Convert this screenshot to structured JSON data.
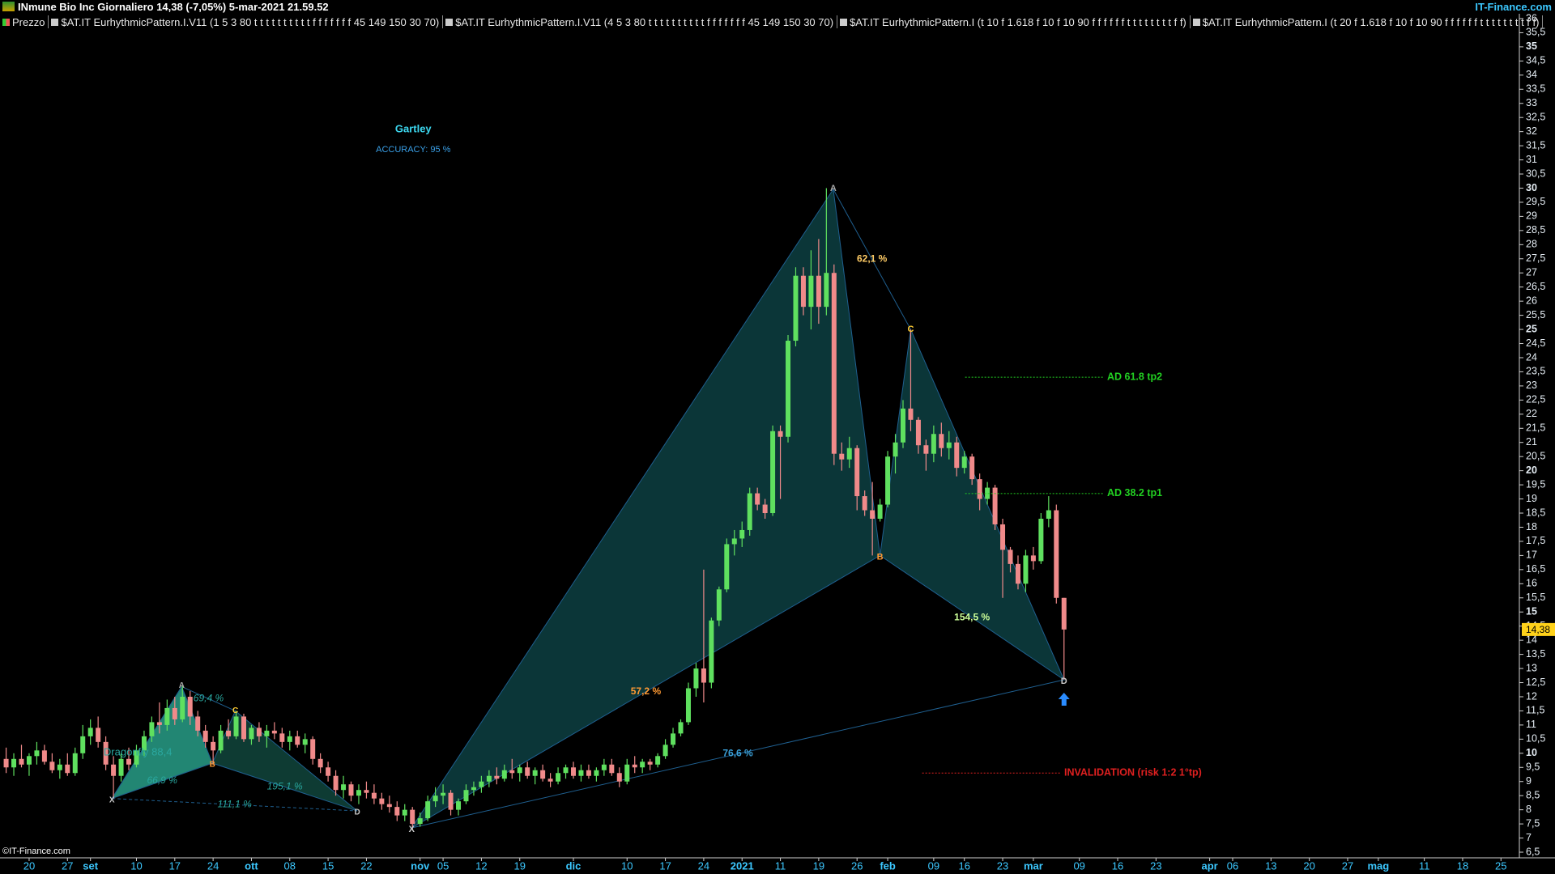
{
  "header": {
    "title": "INmune Bio Inc Giornaliero 14,38 (-7,05%) 5-mar-2021 21.59.52",
    "brand": "IT-Finance.com",
    "indicators": [
      "Prezzo",
      "$AT.IT EurhythmicPattern.I.V11 (1 5 3 80 t t t t t t t t t t f f f f f f f 45 149 150 30 70)",
      "$AT.IT EurhythmicPattern.I.V11 (4 5 3 80 t t t t t t t t t t f f f f f f f 45 149 150 30 70)",
      "$AT.IT EurhythmicPattern.I (t 10 f 1.618 f 10 f 10 90 f f f f f f t t t t t t t t f f)",
      "$AT.IT EurhythmicPattern.I (t 20 f 1.618 f 10 f 10 90 f f f f f f t t t t t t t t f f)"
    ],
    "footer": "©IT-Finance.com"
  },
  "chart_data": {
    "type": "candlestick",
    "x": [
      0,
      1,
      2,
      3,
      4,
      5,
      6,
      7,
      8,
      9,
      10,
      11,
      12,
      13,
      14,
      15,
      16,
      17,
      18,
      19,
      20,
      21,
      22,
      23,
      24,
      25,
      26,
      27,
      28,
      29,
      30,
      31,
      32,
      33,
      34,
      35,
      36,
      37,
      38,
      39,
      40,
      41,
      42,
      43,
      44,
      45,
      46,
      47,
      48,
      49,
      50,
      51,
      52,
      53,
      54,
      55,
      56,
      57,
      58,
      59,
      60,
      61,
      62,
      63,
      64,
      65,
      66,
      67,
      68,
      69,
      70,
      71,
      72,
      73,
      74,
      75,
      76,
      77,
      78,
      79,
      80,
      81,
      82,
      83,
      84,
      85,
      86,
      87,
      88,
      89,
      90,
      91,
      92,
      93,
      94,
      95,
      96,
      97,
      98,
      99,
      100,
      101,
      102,
      103,
      104,
      105,
      106,
      107,
      108,
      109,
      110,
      111,
      112,
      113,
      114,
      115,
      116,
      117,
      118,
      119,
      120,
      121,
      122,
      123,
      124,
      125,
      126,
      127,
      128,
      129,
      130,
      131,
      132,
      133,
      134,
      135,
      136,
      137,
      138
    ],
    "open": [
      9.8,
      9.5,
      9.8,
      9.6,
      9.9,
      10.1,
      9.7,
      9.4,
      9.6,
      9.3,
      10.0,
      10.6,
      10.9,
      10.4,
      9.6,
      9.2,
      9.8,
      9.6,
      10.1,
      10.6,
      11.1,
      11.0,
      11.6,
      11.2,
      12.0,
      11.3,
      10.8,
      10.4,
      10.1,
      10.8,
      10.6,
      11.3,
      10.5,
      10.9,
      10.6,
      10.8,
      10.7,
      10.4,
      10.6,
      10.3,
      10.5,
      9.8,
      9.5,
      9.2,
      8.7,
      8.9,
      8.5,
      8.7,
      8.6,
      8.4,
      8.2,
      8.1,
      7.8,
      8.0,
      7.5,
      7.7,
      8.3,
      8.5,
      8.6,
      8.0,
      8.3,
      8.7,
      8.8,
      9.0,
      9.2,
      9.1,
      9.4,
      9.3,
      9.5,
      9.2,
      9.4,
      9.1,
      9.0,
      9.3,
      9.5,
      9.2,
      9.4,
      9.2,
      9.4,
      9.6,
      9.3,
      9.0,
      9.6,
      9.5,
      9.7,
      9.6,
      9.9,
      10.3,
      10.7,
      11.1,
      12.3,
      13.0,
      12.5,
      14.7,
      15.8,
      17.4,
      17.6,
      17.9,
      19.2,
      18.8,
      18.5,
      21.4,
      21.2,
      24.6,
      26.9,
      25.8,
      26.9,
      25.8,
      27.0,
      20.6,
      20.4,
      20.8,
      19.1,
      18.6,
      18.3,
      18.8,
      20.5,
      21.0,
      22.2,
      21.8,
      20.9,
      20.6,
      21.3,
      20.8,
      21.0,
      20.1,
      20.5,
      19.7,
      19.0,
      19.4,
      18.1,
      17.2,
      16.7,
      16.0,
      17.0,
      16.8,
      18.3,
      18.6,
      15.5
    ],
    "high": [
      10.2,
      10.0,
      10.3,
      10.0,
      10.4,
      10.3,
      10.0,
      9.8,
      10.0,
      10.2,
      11.0,
      11.2,
      11.3,
      10.6,
      9.9,
      10.0,
      10.2,
      10.3,
      10.8,
      11.3,
      11.8,
      11.9,
      12.0,
      12.4,
      12.2,
      11.5,
      11.0,
      10.6,
      11.0,
      11.2,
      11.5,
      11.4,
      11.0,
      11.1,
      11.0,
      11.1,
      10.9,
      10.8,
      10.8,
      10.7,
      10.6,
      10.0,
      9.7,
      9.4,
      9.2,
      9.0,
      8.9,
      9.0,
      8.9,
      8.6,
      8.5,
      8.3,
      8.2,
      8.1,
      7.9,
      8.5,
      8.8,
      8.9,
      8.7,
      8.4,
      8.9,
      9.0,
      9.2,
      9.4,
      9.5,
      9.6,
      9.8,
      9.6,
      9.7,
      9.5,
      9.6,
      9.3,
      9.5,
      9.6,
      9.7,
      9.6,
      9.6,
      9.5,
      9.8,
      9.8,
      9.5,
      9.8,
      9.9,
      9.8,
      9.8,
      10.0,
      10.5,
      10.9,
      11.2,
      12.5,
      13.2,
      16.5,
      14.8,
      15.9,
      17.6,
      17.9,
      18.2,
      19.4,
      19.4,
      19.0,
      21.6,
      21.6,
      24.8,
      27.2,
      27.2,
      27.8,
      28.2,
      30.0,
      27.3,
      21.0,
      21.2,
      20.9,
      19.3,
      19.6,
      19.0,
      20.7,
      21.3,
      22.5,
      25.0,
      21.9,
      21.1,
      21.6,
      21.7,
      21.4,
      21.2,
      20.7,
      20.6,
      19.9,
      19.6,
      19.5,
      18.3,
      17.3,
      17.0,
      17.2,
      17.3,
      18.5,
      19.1,
      18.8,
      15.5
    ],
    "low": [
      9.3,
      9.2,
      9.5,
      9.2,
      9.6,
      9.6,
      9.3,
      9.1,
      9.2,
      9.2,
      9.8,
      10.3,
      10.2,
      9.4,
      8.4,
      9.0,
      9.4,
      9.5,
      9.9,
      10.4,
      10.7,
      10.8,
      11.0,
      11.1,
      11.0,
      10.6,
      10.2,
      9.6,
      10.0,
      10.5,
      10.5,
      10.4,
      10.3,
      10.4,
      10.2,
      10.5,
      10.2,
      10.1,
      10.2,
      10.0,
      9.6,
      9.3,
      9.0,
      8.5,
      8.4,
      8.3,
      8.2,
      8.4,
      8.2,
      8.0,
      7.9,
      7.6,
      7.6,
      7.3,
      7.4,
      7.6,
      8.1,
      8.2,
      7.8,
      7.8,
      8.2,
      8.5,
      8.6,
      8.8,
      8.9,
      9.0,
      9.1,
      9.0,
      9.1,
      8.9,
      9.0,
      8.8,
      8.9,
      9.1,
      9.1,
      9.0,
      9.1,
      9.0,
      9.2,
      9.2,
      8.8,
      8.9,
      9.3,
      9.3,
      9.4,
      9.5,
      9.8,
      10.2,
      10.6,
      11.0,
      12.0,
      11.8,
      12.3,
      14.5,
      15.7,
      17.0,
      17.3,
      17.7,
      18.6,
      18.3,
      18.4,
      19.0,
      21.0,
      24.4,
      25.5,
      25.0,
      25.2,
      25.5,
      20.2,
      20.0,
      20.1,
      18.6,
      18.4,
      17.0,
      18.2,
      18.7,
      19.9,
      20.8,
      21.4,
      20.6,
      20.0,
      20.3,
      20.5,
      20.4,
      19.8,
      19.9,
      19.5,
      18.6,
      18.8,
      17.9,
      15.5,
      16.4,
      15.8,
      15.7,
      16.5,
      16.7,
      18.0,
      15.3,
      12.6
    ],
    "close": [
      9.5,
      9.8,
      9.6,
      9.9,
      10.1,
      9.7,
      9.4,
      9.6,
      9.3,
      10.0,
      10.6,
      10.9,
      10.4,
      9.6,
      9.2,
      9.8,
      9.6,
      10.1,
      10.6,
      11.1,
      11.0,
      11.6,
      11.2,
      12.0,
      11.3,
      10.8,
      10.4,
      10.1,
      10.8,
      10.6,
      11.3,
      10.5,
      10.9,
      10.6,
      10.8,
      10.7,
      10.4,
      10.6,
      10.3,
      10.5,
      9.8,
      9.5,
      9.2,
      8.7,
      8.9,
      8.5,
      8.7,
      8.6,
      8.4,
      8.2,
      8.1,
      7.8,
      8.0,
      7.5,
      7.7,
      8.3,
      8.5,
      8.6,
      8.0,
      8.3,
      8.7,
      8.8,
      9.0,
      9.2,
      9.1,
      9.4,
      9.3,
      9.5,
      9.2,
      9.4,
      9.1,
      9.0,
      9.3,
      9.5,
      9.2,
      9.4,
      9.2,
      9.4,
      9.6,
      9.3,
      9.0,
      9.6,
      9.5,
      9.7,
      9.6,
      9.9,
      10.3,
      10.7,
      11.1,
      12.3,
      13.0,
      12.5,
      14.7,
      15.8,
      17.4,
      17.6,
      17.9,
      19.2,
      18.8,
      18.5,
      21.4,
      21.2,
      24.6,
      26.9,
      25.8,
      26.9,
      25.8,
      27.0,
      20.6,
      20.4,
      20.8,
      19.1,
      18.6,
      18.3,
      18.8,
      20.5,
      21.0,
      22.2,
      21.8,
      20.9,
      20.6,
      21.3,
      20.8,
      21.0,
      20.1,
      20.5,
      19.7,
      19.0,
      19.4,
      18.1,
      17.2,
      16.7,
      16.0,
      17.0,
      16.8,
      18.3,
      18.6,
      15.5,
      14.38
    ],
    "up_color": "#5fe05f",
    "down_color": "#f08a8a",
    "xlim": [
      -0.8,
      197.4
    ],
    "ylim": [
      6.3,
      36.2
    ],
    "xticks": [
      {
        "value": 3,
        "label": "20"
      },
      {
        "value": 8,
        "label": "27"
      },
      {
        "value": 11,
        "label": "set"
      },
      {
        "value": 17,
        "label": "10"
      },
      {
        "value": 22,
        "label": "17"
      },
      {
        "value": 27,
        "label": "24"
      },
      {
        "value": 32,
        "label": "ott"
      },
      {
        "value": 37,
        "label": "08"
      },
      {
        "value": 42,
        "label": "15"
      },
      {
        "value": 47,
        "label": "22"
      },
      {
        "value": 54,
        "label": "nov"
      },
      {
        "value": 57,
        "label": "05"
      },
      {
        "value": 62,
        "label": "12"
      },
      {
        "value": 67,
        "label": "19"
      },
      {
        "value": 74,
        "label": "dic"
      },
      {
        "value": 81,
        "label": "10"
      },
      {
        "value": 86,
        "label": "17"
      },
      {
        "value": 91,
        "label": "24"
      },
      {
        "value": 96,
        "label": "2021"
      },
      {
        "value": 101,
        "label": "11"
      },
      {
        "value": 106,
        "label": "19"
      },
      {
        "value": 111,
        "label": "26"
      },
      {
        "value": 115,
        "label": "feb"
      },
      {
        "value": 121,
        "label": "09"
      },
      {
        "value": 125,
        "label": "16"
      },
      {
        "value": 130,
        "label": "23"
      },
      {
        "value": 134,
        "label": "mar"
      },
      {
        "value": 140,
        "label": "09"
      },
      {
        "value": 145,
        "label": "16"
      },
      {
        "value": 150,
        "label": "23"
      },
      {
        "value": 157,
        "label": "apr"
      },
      {
        "value": 160,
        "label": "06"
      },
      {
        "value": 165,
        "label": "13"
      },
      {
        "value": 170,
        "label": "20"
      },
      {
        "value": 175,
        "label": "27"
      },
      {
        "value": 179,
        "label": "mag"
      },
      {
        "value": 185,
        "label": "11"
      },
      {
        "value": 190,
        "label": "18"
      },
      {
        "value": 195,
        "label": "25"
      }
    ],
    "yticks": [
      {
        "value": 6.5,
        "label": "6,5"
      },
      7,
      {
        "value": 7.5,
        "label": "7,5"
      },
      8,
      {
        "value": 8.5,
        "label": "8,5"
      },
      9,
      {
        "value": 9.5,
        "label": "9,5"
      },
      10,
      {
        "value": 10.5,
        "label": "10,5"
      },
      11,
      {
        "value": 11.5,
        "label": "11,5"
      },
      12,
      {
        "value": 12.5,
        "label": "12,5"
      },
      13,
      {
        "value": 13.5,
        "label": "13,5"
      },
      14,
      {
        "value": 14.5,
        "label": "14,5"
      },
      15,
      {
        "value": 15.5,
        "label": "15,5"
      },
      16,
      {
        "value": 16.5,
        "label": "16,5"
      },
      17,
      {
        "value": 17.5,
        "label": "17,5"
      },
      18,
      {
        "value": 18.5,
        "label": "18,5"
      },
      19,
      {
        "value": 19.5,
        "label": "19,5"
      },
      20,
      {
        "value": 20.5,
        "label": "20,5"
      },
      21,
      {
        "value": 21.5,
        "label": "21,5"
      },
      22,
      {
        "value": 22.5,
        "label": "22,5"
      },
      23,
      {
        "value": 23.5,
        "label": "23,5"
      },
      24,
      {
        "value": 24.5,
        "label": "24,5"
      },
      25,
      {
        "value": 25.5,
        "label": "25,5"
      },
      26,
      {
        "value": 26.5,
        "label": "26,5"
      },
      27,
      {
        "value": 27.5,
        "label": "27,5"
      },
      28,
      {
        "value": 28.5,
        "label": "28,5"
      },
      29,
      {
        "value": 29.5,
        "label": "29,5"
      },
      30,
      {
        "value": 30.5,
        "label": "30,5"
      },
      31,
      {
        "value": 31.5,
        "label": "31,5"
      },
      32,
      {
        "value": 32.5,
        "label": "32,5"
      },
      33,
      {
        "value": 33.5,
        "label": "33,5"
      },
      34,
      {
        "value": 34.5,
        "label": "34,5"
      },
      35,
      {
        "value": 35.5,
        "label": "35,5"
      },
      36
    ],
    "last_price": {
      "value": 14.38,
      "label": "14,38"
    },
    "patterns": [
      {
        "name": "Gartley",
        "accuracy": "ACCURACY: 95 %",
        "fills": [
          "#0c3c3e",
          "#0c3c3e"
        ],
        "points": {
          "labels": [
            "X",
            "A",
            "B",
            "C",
            "D"
          ],
          "x": [
            52.9,
            107.9,
            114,
            118,
            138
          ],
          "y": [
            7.36,
            29.96,
            17.0,
            25.0,
            12.6
          ]
        },
        "ratios": [
          "57,2 %",
          "62,1 %",
          "154,5 %",
          "76,6 %"
        ]
      },
      {
        "name": "Dragonfly 88,4",
        "fills": [
          "#2aa890",
          "#124a40"
        ],
        "points": {
          "labels": [
            "X",
            "A",
            "B",
            "C",
            "D"
          ],
          "x": [
            13.8,
            22.9,
            26.9,
            29.9,
            45.8
          ],
          "y": [
            8.4,
            12.36,
            9.65,
            11.5,
            7.96
          ]
        },
        "ratios": [
          "66,9 %",
          "69,4 %",
          "195,1 %",
          "111,1 %"
        ]
      }
    ],
    "levels": [
      {
        "label": "AD 61.8 tp2",
        "value": 23.31,
        "x": [
          125.1,
          143.2
        ],
        "color": "#22d022"
      },
      {
        "label": "AD 38.2 tp1",
        "value": 19.19,
        "x": [
          125.1,
          143.2
        ],
        "color": "#22d022"
      },
      {
        "label": "INVALIDATION (risk 1:2 1°tp)",
        "value": 9.3,
        "x": [
          119.5,
          137.6
        ],
        "color": "#e02020"
      }
    ]
  }
}
